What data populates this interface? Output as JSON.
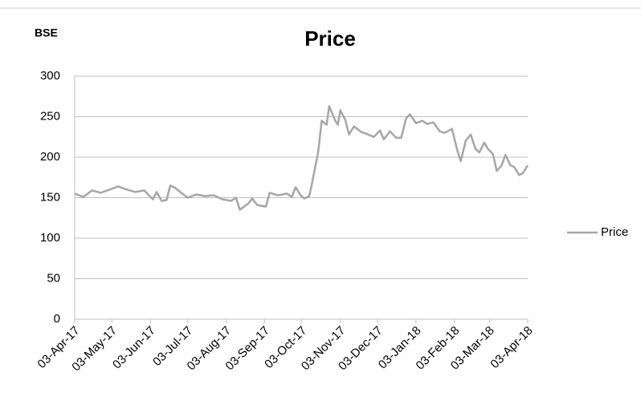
{
  "chart_data": {
    "type": "line",
    "title": "Price",
    "y_label": "BSE",
    "x": [
      "2017-04-03",
      "2017-04-10",
      "2017-04-17",
      "2017-04-24",
      "2017-05-01",
      "2017-05-08",
      "2017-05-15",
      "2017-05-22",
      "2017-05-29",
      "2017-06-05",
      "2017-06-08",
      "2017-06-12",
      "2017-06-16",
      "2017-06-19",
      "2017-06-23",
      "2017-06-27",
      "2017-07-03",
      "2017-07-10",
      "2017-07-17",
      "2017-07-24",
      "2017-07-31",
      "2017-08-07",
      "2017-08-11",
      "2017-08-14",
      "2017-08-21",
      "2017-08-24",
      "2017-08-28",
      "2017-09-04",
      "2017-09-07",
      "2017-09-14",
      "2017-09-21",
      "2017-09-25",
      "2017-09-28",
      "2017-10-02",
      "2017-10-05",
      "2017-10-09",
      "2017-10-11",
      "2017-10-16",
      "2017-10-19",
      "2017-10-23",
      "2017-10-25",
      "2017-10-30",
      "2017-11-01",
      "2017-11-03",
      "2017-11-07",
      "2017-11-10",
      "2017-11-14",
      "2017-11-20",
      "2017-11-24",
      "2017-11-30",
      "2017-12-05",
      "2017-12-08",
      "2017-12-13",
      "2017-12-18",
      "2017-12-22",
      "2017-12-26",
      "2017-12-29",
      "2018-01-03",
      "2018-01-08",
      "2018-01-12",
      "2018-01-17",
      "2018-01-22",
      "2018-01-26",
      "2018-02-01",
      "2018-02-05",
      "2018-02-08",
      "2018-02-12",
      "2018-02-16",
      "2018-02-20",
      "2018-02-23",
      "2018-02-27",
      "2018-03-02",
      "2018-03-06",
      "2018-03-09",
      "2018-03-13",
      "2018-03-16",
      "2018-03-20",
      "2018-03-23",
      "2018-03-27",
      "2018-03-30",
      "2018-04-03"
    ],
    "series": [
      {
        "name": "Price",
        "color": "#a6a6a6",
        "values": [
          155,
          151,
          159,
          156,
          160,
          164,
          160,
          157,
          159,
          148,
          157,
          146,
          147,
          165,
          162,
          157,
          150,
          154,
          152,
          153,
          148,
          146,
          150,
          135,
          143,
          149,
          141,
          139,
          156,
          153,
          155,
          151,
          163,
          153,
          149,
          152,
          166,
          205,
          245,
          240,
          263,
          245,
          240,
          258,
          246,
          228,
          238,
          231,
          229,
          225,
          233,
          222,
          232,
          224,
          224,
          248,
          253,
          242,
          245,
          241,
          243,
          232,
          230,
          235,
          210,
          195,
          220,
          228,
          210,
          206,
          218,
          210,
          204,
          183,
          190,
          203,
          190,
          188,
          178,
          180,
          190
        ]
      }
    ],
    "xlim": [
      "2017-04-03",
      "2018-04-03"
    ],
    "xticks": [
      {
        "value": "2017-04-03",
        "label": "03-Apr-17"
      },
      {
        "value": "2017-05-03",
        "label": "03-May-17"
      },
      {
        "value": "2017-06-03",
        "label": "03-Jun-17"
      },
      {
        "value": "2017-07-03",
        "label": "03-Jul-17"
      },
      {
        "value": "2017-08-03",
        "label": "03-Aug-17"
      },
      {
        "value": "2017-09-03",
        "label": "03-Sep-17"
      },
      {
        "value": "2017-10-03",
        "label": "03-Oct-17"
      },
      {
        "value": "2017-11-03",
        "label": "03-Nov-17"
      },
      {
        "value": "2017-12-03",
        "label": "03-Dec-17"
      },
      {
        "value": "2018-01-03",
        "label": "03-Jan-18"
      },
      {
        "value": "2018-02-03",
        "label": "03-Feb-18"
      },
      {
        "value": "2018-03-03",
        "label": "03-Mar-18"
      },
      {
        "value": "2018-04-03",
        "label": "03-Apr-18"
      }
    ],
    "ylim": [
      0,
      300
    ],
    "yticks": [
      0,
      50,
      100,
      150,
      200,
      250,
      300
    ],
    "grid": true,
    "legend": "right"
  }
}
